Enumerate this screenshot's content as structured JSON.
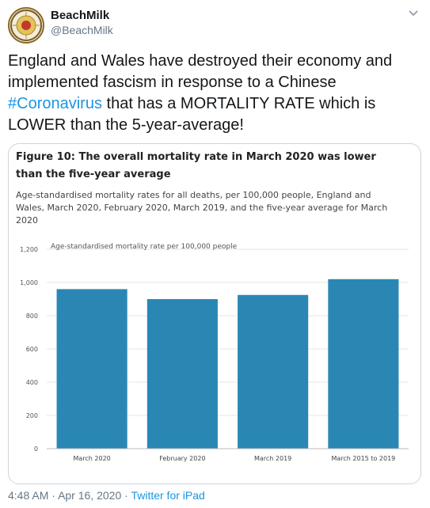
{
  "tweet": {
    "author_name": "BeachMilk",
    "author_handle": "@BeachMilk",
    "text_before": "England and Wales have destroyed their economy and implemented fascism in response to a Chinese ",
    "hashtag": "#Coronavirus",
    "text_after": " that has a MORTALITY RATE  which is LOWER than the 5-year-average!",
    "time": "4:48 AM",
    "separator": "·",
    "date": "Apr 16, 2020",
    "source": "Twitter for iPad"
  },
  "chart_data": {
    "type": "bar",
    "title": "Figure 10: The overall mortality rate in March 2020 was lower than the five-year average",
    "subtitle": "Age-standardised mortality rates for all deaths, per 100,000 people, England and Wales, March 2020, February 2020, March 2019, and the five-year average for March 2020",
    "ylabel": "Age-standardised mortality rate per 100,000 people",
    "xlabel": "",
    "categories": [
      "March 2020",
      "February 2020",
      "March 2019",
      "March 2015 to 2019"
    ],
    "values": [
      960,
      900,
      925,
      1020
    ],
    "ylim": [
      0,
      1200
    ],
    "yticks": [
      0,
      200,
      400,
      600,
      800,
      1000,
      1200
    ],
    "ytick_labels": [
      "0",
      "200",
      "400",
      "600",
      "800",
      "1,000",
      "1,200"
    ],
    "bar_color": "#2a87b4",
    "grid": true
  }
}
